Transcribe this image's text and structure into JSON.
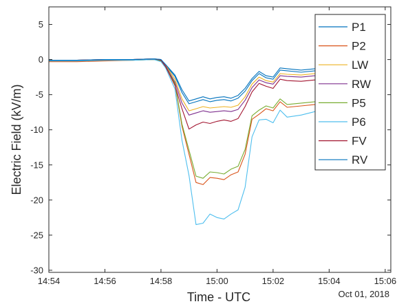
{
  "chart_data": {
    "type": "line",
    "xlabel": "Time - UTC",
    "ylabel": "Electric Field (kV/m)",
    "date_label": "Oct 01, 2018",
    "xlim": [
      "14:54",
      "15:06.2"
    ],
    "ylim": [
      -30.3,
      7.5
    ],
    "x_ticks": [
      "14:54",
      "14:56",
      "14:58",
      "15:00",
      "15:02",
      "15:04",
      "15:06"
    ],
    "y_ticks": [
      5,
      0,
      -5,
      -10,
      -15,
      -20,
      -25,
      -30
    ],
    "grid": false,
    "legend_position": "top-right",
    "x": [
      "14:54:00",
      "14:55:00",
      "14:56:00",
      "14:57:00",
      "14:57:45",
      "14:58:00",
      "14:58:10",
      "14:58:30",
      "14:58:45",
      "14:59:00",
      "14:59:15",
      "14:59:30",
      "14:59:45",
      "15:00:00",
      "15:00:15",
      "15:00:30",
      "15:00:45",
      "15:01:00",
      "15:01:15",
      "15:01:30",
      "15:01:45",
      "15:02:00",
      "15:02:15",
      "15:02:30",
      "15:03:00",
      "15:03:30",
      "15:04:00",
      "15:04:30",
      "15:05:00",
      "15:05:30",
      "15:06:00"
    ],
    "series": [
      {
        "name": "P1",
        "color": "#0072BD",
        "values": [
          -0.1,
          -0.1,
          0,
          0,
          0.1,
          0,
          -0.8,
          -2.4,
          -4.7,
          -6.3,
          -6.0,
          -5.7,
          -6.0,
          -5.8,
          -5.7,
          -5.9,
          -5.5,
          -4.5,
          -3.0,
          -2.0,
          -2.6,
          -2.8,
          -1.5,
          -1.6,
          -1.8,
          -1.6,
          -1.6,
          -1.4,
          -1.6,
          -1.3,
          -1.4
        ]
      },
      {
        "name": "P2",
        "color": "#D95319",
        "values": [
          -0.3,
          -0.3,
          -0.2,
          -0.1,
          0,
          -0.2,
          -1.0,
          -3.5,
          -9.5,
          -13.5,
          -17.5,
          -17.8,
          -16.8,
          -16.9,
          -17.1,
          -16.4,
          -16.0,
          -13.5,
          -8.5,
          -7.8,
          -7.0,
          -7.3,
          -6.0,
          -6.8,
          -6.6,
          -6.4,
          -6.3,
          -6.2,
          -6.4,
          -5.3,
          -5.0
        ]
      },
      {
        "name": "LW",
        "color": "#EDB120",
        "values": [
          -0.1,
          -0.1,
          0,
          0,
          0.1,
          -0.1,
          -0.8,
          -2.8,
          -5.6,
          -7.3,
          -7.0,
          -6.7,
          -6.9,
          -6.8,
          -6.7,
          -6.8,
          -6.5,
          -5.3,
          -3.5,
          -2.5,
          -3.0,
          -3.2,
          -2.0,
          -2.1,
          -2.2,
          -2.0,
          -2.0,
          -1.9,
          -2.0,
          -1.7,
          -1.8
        ]
      },
      {
        "name": "RW",
        "color": "#7E2F8E",
        "values": [
          -0.1,
          -0.1,
          0,
          0,
          0.1,
          -0.1,
          -0.9,
          -3.2,
          -6.2,
          -7.9,
          -7.6,
          -7.3,
          -7.5,
          -7.4,
          -7.3,
          -7.4,
          -7.1,
          -5.8,
          -4.0,
          -2.9,
          -3.3,
          -3.5,
          -2.3,
          -2.4,
          -2.5,
          -2.3,
          -2.3,
          -2.2,
          -2.3,
          -2.0,
          -2.1
        ]
      },
      {
        "name": "P5",
        "color": "#77AC30",
        "values": [
          -0.2,
          -0.2,
          -0.1,
          -0.1,
          0,
          -0.2,
          -1.0,
          -3.4,
          -9.2,
          -12.9,
          -16.6,
          -16.9,
          -16.0,
          -16.1,
          -16.3,
          -15.6,
          -15.2,
          -12.8,
          -8.0,
          -7.2,
          -6.6,
          -6.9,
          -5.6,
          -6.4,
          -6.2,
          -6.0,
          -5.8,
          -5.7,
          -5.9,
          -4.8,
          -4.5
        ]
      },
      {
        "name": "P6",
        "color": "#4DBEEE",
        "values": [
          -0.2,
          -0.2,
          -0.1,
          -0.1,
          0,
          -0.3,
          -1.2,
          -4.2,
          -11.5,
          -16.5,
          -23.5,
          -23.3,
          -22.0,
          -22.5,
          -22.7,
          -22.0,
          -21.4,
          -18.2,
          -11.0,
          -8.6,
          -8.5,
          -9.0,
          -7.2,
          -8.2,
          -7.9,
          -7.4,
          -7.1,
          -6.8,
          -7.0,
          -6.6,
          -6.8
        ]
      },
      {
        "name": "FV",
        "color": "#A2142F",
        "values": [
          -0.1,
          -0.1,
          0,
          0,
          0.1,
          -0.1,
          -1.0,
          -3.7,
          -7.0,
          -9.9,
          -9.3,
          -8.9,
          -9.1,
          -8.8,
          -8.6,
          -8.8,
          -8.4,
          -6.7,
          -4.6,
          -3.4,
          -3.8,
          -4.1,
          -2.8,
          -3.0,
          -3.1,
          -2.9,
          -2.8,
          -2.7,
          -2.9,
          -2.5,
          -2.6
        ]
      },
      {
        "name": "RV",
        "color": "#0072BD",
        "values": [
          -0.1,
          -0.1,
          0,
          0,
          0.1,
          0,
          -0.7,
          -2.2,
          -4.3,
          -5.9,
          -5.6,
          -5.3,
          -5.6,
          -5.4,
          -5.3,
          -5.5,
          -5.1,
          -4.1,
          -2.7,
          -1.7,
          -2.3,
          -2.5,
          -1.2,
          -1.3,
          -1.5,
          -1.3,
          -1.3,
          -1.1,
          -1.3,
          -1.0,
          -1.1
        ]
      }
    ]
  }
}
